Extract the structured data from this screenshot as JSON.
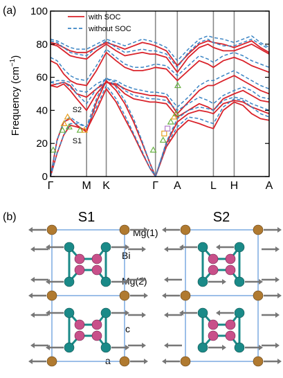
{
  "panel_a_label": "(a)",
  "panel_b_label": "(b)",
  "chart_data": {
    "type": "line",
    "title": "",
    "xlabel": "",
    "ylabel": "Frequency (cm",
    "ylabel_sup": "−1",
    "ylabel_close": ")",
    "ylim": [
      0,
      100
    ],
    "yticks": [
      0,
      20,
      40,
      60,
      80,
      100
    ],
    "grid": false,
    "legend_placement": "top-left",
    "kpath": [
      "Γ",
      "M",
      "K",
      "Γ",
      "A",
      "L",
      "H",
      "A"
    ],
    "kpos": [
      0,
      0.165,
      0.255,
      0.48,
      0.58,
      0.745,
      0.84,
      1
    ],
    "colors": {
      "soc": "#d9222a",
      "nosoc": "#3a84c4",
      "grid_line": "#888888",
      "exp_green": "#66b040",
      "exp_orange": "#e8a020",
      "exp_purple": "#b07ac8"
    },
    "series": [
      {
        "name": "with SOC",
        "style": "solid",
        "x": [
          0,
          0.03,
          0.06,
          0.09,
          0.12,
          0.165,
          0.21,
          0.255,
          0.3,
          0.34,
          0.38,
          0.42,
          0.455,
          0.48,
          0.53,
          0.58,
          0.63,
          0.68,
          0.72,
          0.745,
          0.79,
          0.84,
          0.88,
          0.92,
          0.96,
          1.0
        ],
        "bands": [
          [
            0,
            14,
            25,
            31,
            30,
            28,
            40,
            53,
            45,
            35,
            25,
            14,
            5,
            0,
            18,
            28,
            34,
            32,
            30,
            29,
            40,
            45,
            43,
            38,
            35,
            34
          ],
          [
            0,
            22,
            33,
            35,
            31,
            27,
            45,
            58,
            52,
            44,
            33,
            20,
            8,
            0,
            20,
            33,
            38,
            40,
            39,
            38,
            44,
            46,
            45,
            42,
            40,
            38
          ],
          [
            55,
            54,
            56,
            52,
            47,
            40,
            50,
            57,
            55,
            50,
            47,
            46,
            45,
            45,
            44,
            36,
            40,
            44,
            42,
            40,
            47,
            50,
            52,
            49,
            46,
            45
          ],
          [
            55,
            56,
            57,
            55,
            50,
            48,
            53,
            57,
            56,
            53,
            51,
            50,
            49,
            49,
            48,
            38,
            45,
            52,
            55,
            55,
            58,
            61,
            58,
            55,
            52,
            50
          ],
          [
            70,
            68,
            62,
            58,
            56,
            55,
            64,
            75,
            70,
            66,
            64,
            64,
            65,
            66,
            65,
            58,
            64,
            70,
            68,
            66,
            70,
            72,
            70,
            67,
            65,
            63
          ],
          [
            80,
            79,
            76,
            73,
            72,
            71,
            76,
            80,
            76,
            73,
            74,
            75,
            74,
            74,
            72,
            63,
            72,
            78,
            80,
            78,
            76,
            76,
            78,
            80,
            77,
            74
          ],
          [
            81,
            80,
            78,
            76,
            75,
            75,
            78,
            81,
            79,
            77,
            79,
            81,
            80,
            79,
            76,
            67,
            74,
            80,
            82,
            81,
            80,
            78,
            80,
            82,
            78,
            75
          ]
        ]
      },
      {
        "name": "without SOC",
        "style": "dashed",
        "x": [
          0,
          0.03,
          0.06,
          0.09,
          0.12,
          0.165,
          0.21,
          0.255,
          0.3,
          0.34,
          0.38,
          0.42,
          0.455,
          0.48,
          0.53,
          0.58,
          0.63,
          0.68,
          0.72,
          0.745,
          0.79,
          0.84,
          0.88,
          0.92,
          0.96,
          1.0
        ],
        "bands": [
          [
            0,
            14,
            25,
            32,
            32,
            30,
            42,
            55,
            47,
            37,
            26,
            15,
            5,
            0,
            19,
            30,
            36,
            35,
            33,
            32,
            42,
            47,
            46,
            42,
            38,
            36
          ],
          [
            0,
            22,
            33,
            36,
            33,
            30,
            47,
            60,
            54,
            46,
            35,
            21,
            8,
            0,
            21,
            35,
            40,
            42,
            41,
            40,
            46,
            48,
            47,
            44,
            42,
            40
          ],
          [
            57,
            56,
            57,
            54,
            50,
            44,
            53,
            59,
            57,
            52,
            49,
            48,
            47,
            47,
            46,
            40,
            44,
            48,
            46,
            44,
            49,
            52,
            54,
            52,
            48,
            47
          ],
          [
            57,
            58,
            58,
            57,
            52,
            51,
            56,
            59,
            58,
            55,
            53,
            52,
            51,
            51,
            50,
            42,
            48,
            55,
            58,
            58,
            61,
            64,
            61,
            58,
            55,
            53
          ],
          [
            72,
            70,
            65,
            61,
            59,
            58,
            67,
            77,
            72,
            68,
            66,
            66,
            67,
            68,
            67,
            61,
            67,
            73,
            71,
            69,
            73,
            75,
            73,
            70,
            68,
            66
          ],
          [
            82,
            81,
            78,
            75,
            74,
            73,
            78,
            82,
            78,
            75,
            76,
            77,
            76,
            76,
            74,
            66,
            75,
            81,
            83,
            81,
            79,
            79,
            81,
            83,
            80,
            77
          ],
          [
            83,
            82,
            80,
            78,
            77,
            77,
            80,
            83,
            81,
            79,
            81,
            83,
            82,
            81,
            78,
            70,
            77,
            83,
            85,
            84,
            83,
            81,
            83,
            85,
            81,
            78
          ]
        ]
      }
    ],
    "experimental_points": [
      {
        "x": 0.012,
        "y": 16,
        "marker": "triangle",
        "color": "green"
      },
      {
        "x": 0.055,
        "y": 28,
        "marker": "triangle",
        "color": "green"
      },
      {
        "x": 0.062,
        "y": 32,
        "marker": "triangle",
        "color": "orange"
      },
      {
        "x": 0.085,
        "y": 30,
        "marker": "triangle",
        "color": "green"
      },
      {
        "x": 0.078,
        "y": 36,
        "marker": "triangle",
        "color": "orange"
      },
      {
        "x": 0.135,
        "y": 28,
        "marker": "triangle",
        "color": "green"
      },
      {
        "x": 0.155,
        "y": 28,
        "marker": "triangle",
        "color": "orange"
      },
      {
        "x": 0.47,
        "y": 16,
        "marker": "triangle",
        "color": "green"
      },
      {
        "x": 0.515,
        "y": 22,
        "marker": "triangle",
        "color": "green"
      },
      {
        "x": 0.52,
        "y": 26,
        "marker": "square",
        "color": "orange"
      },
      {
        "x": 0.535,
        "y": 29,
        "marker": "square",
        "color": "purple"
      },
      {
        "x": 0.55,
        "y": 33,
        "marker": "triangle",
        "color": "green"
      },
      {
        "x": 0.565,
        "y": 36,
        "marker": "triangle",
        "color": "orange"
      },
      {
        "x": 0.575,
        "y": 38,
        "marker": "triangle",
        "color": "green"
      },
      {
        "x": 0.582,
        "y": 55,
        "marker": "triangle",
        "color": "green"
      }
    ],
    "annotations": [
      {
        "text": "S2",
        "x": 0.075,
        "y": 39
      },
      {
        "text": "S1",
        "x": 0.075,
        "y": 20
      }
    ]
  },
  "panel_b": {
    "structures": [
      {
        "title": "S1"
      },
      {
        "title": "S2"
      }
    ],
    "labels": {
      "mg1": "Mg(1)",
      "bi": "Bi",
      "mg2": "Mg(2)",
      "c": "c",
      "a": "a"
    },
    "colors": {
      "mg1": "#b07a30",
      "bi": "#c8508a",
      "mg2": "#1a8a88",
      "arrow": "#777777",
      "cell": "#3a7fd0"
    }
  }
}
